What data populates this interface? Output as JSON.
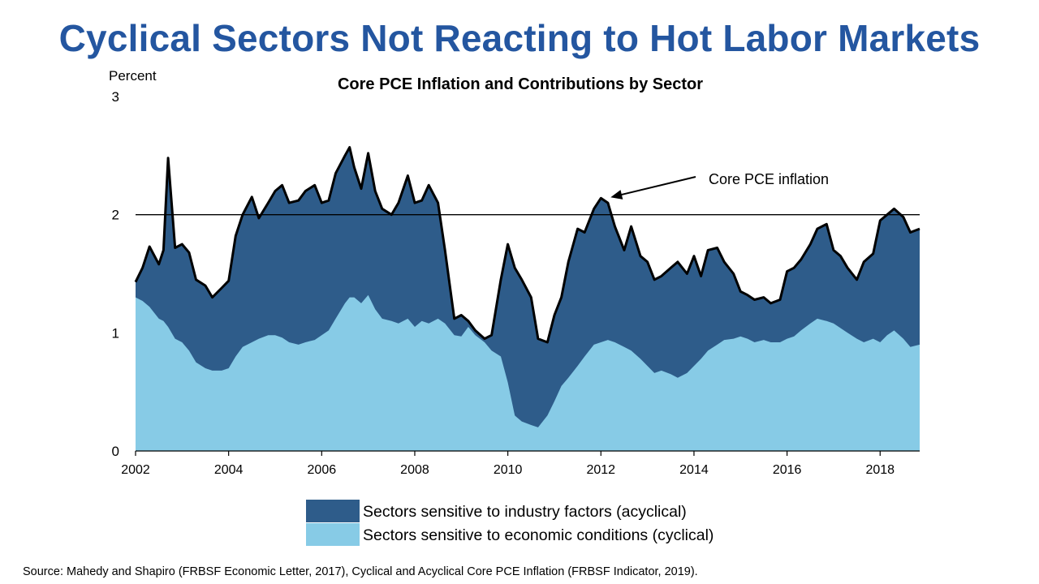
{
  "slide": {
    "title": "Cyclical Sectors Not Reacting to Hot Labor Markets",
    "source": "Source: Mahedy and Shapiro (FRBSF Economic Letter, 2017), Cyclical and Acyclical Core PCE Inflation  (FRBSF Indicator,  2019)."
  },
  "colors": {
    "title": "#2456a0",
    "acyclical": "#2e5c8a",
    "cyclical": "#87cbe6",
    "line": "#000000"
  },
  "chart_data": {
    "type": "area",
    "title": "Core PCE Inflation and Contributions by Sector",
    "ylabel": "Percent",
    "xlim": [
      2002,
      2018.85
    ],
    "ylim": [
      0,
      3
    ],
    "x_ticks": [
      2002,
      2004,
      2006,
      2008,
      2010,
      2012,
      2014,
      2016,
      2018
    ],
    "y_ticks": [
      0,
      1,
      2,
      3
    ],
    "reference_line": 2,
    "stacked": true,
    "legend_position": "bottom",
    "annotation": {
      "text": "Core PCE inflation",
      "points_to": [
        2012.0,
        2.14
      ]
    },
    "line_series_name": "Core PCE inflation",
    "series": [
      {
        "name": "Sectors sensitive to industry factors (acyclical)",
        "role": "acyclical",
        "stack_top": "core"
      },
      {
        "name": "Sectors sensitive to economic conditions (cyclical)",
        "role": "cyclical",
        "stack_top": "cyclical"
      }
    ],
    "x": [
      2002.0,
      2002.15,
      2002.3,
      2002.5,
      2002.6,
      2002.7,
      2002.85,
      2003.0,
      2003.15,
      2003.3,
      2003.5,
      2003.65,
      2003.85,
      2004.0,
      2004.15,
      2004.3,
      2004.5,
      2004.65,
      2004.85,
      2005.0,
      2005.15,
      2005.3,
      2005.5,
      2005.65,
      2005.85,
      2006.0,
      2006.15,
      2006.3,
      2006.5,
      2006.6,
      2006.7,
      2006.85,
      2007.0,
      2007.15,
      2007.3,
      2007.5,
      2007.65,
      2007.85,
      2008.0,
      2008.15,
      2008.3,
      2008.5,
      2008.65,
      2008.85,
      2009.0,
      2009.15,
      2009.3,
      2009.5,
      2009.65,
      2009.85,
      2010.0,
      2010.15,
      2010.3,
      2010.5,
      2010.65,
      2010.85,
      2011.0,
      2011.15,
      2011.3,
      2011.5,
      2011.65,
      2011.85,
      2012.0,
      2012.15,
      2012.3,
      2012.5,
      2012.65,
      2012.85,
      2013.0,
      2013.15,
      2013.3,
      2013.5,
      2013.65,
      2013.85,
      2014.0,
      2014.15,
      2014.3,
      2014.5,
      2014.65,
      2014.85,
      2015.0,
      2015.15,
      2015.3,
      2015.5,
      2015.65,
      2015.85,
      2016.0,
      2016.15,
      2016.3,
      2016.5,
      2016.65,
      2016.85,
      2017.0,
      2017.15,
      2017.3,
      2017.5,
      2017.65,
      2017.85,
      2018.0,
      2018.15,
      2018.3,
      2018.5,
      2018.65,
      2018.85
    ],
    "core": [
      1.43,
      1.55,
      1.73,
      1.58,
      1.7,
      2.48,
      1.72,
      1.75,
      1.68,
      1.45,
      1.4,
      1.3,
      1.38,
      1.44,
      1.82,
      2.0,
      2.15,
      1.97,
      2.1,
      2.2,
      2.25,
      2.1,
      2.12,
      2.2,
      2.25,
      2.1,
      2.12,
      2.35,
      2.5,
      2.57,
      2.4,
      2.22,
      2.52,
      2.2,
      2.05,
      2.0,
      2.1,
      2.33,
      2.1,
      2.12,
      2.25,
      2.1,
      1.7,
      1.12,
      1.15,
      1.1,
      1.02,
      0.95,
      0.98,
      1.45,
      1.75,
      1.55,
      1.45,
      1.3,
      0.95,
      0.92,
      1.15,
      1.3,
      1.6,
      1.88,
      1.85,
      2.05,
      2.14,
      2.1,
      1.9,
      1.7,
      1.9,
      1.65,
      1.6,
      1.45,
      1.48,
      1.55,
      1.6,
      1.5,
      1.65,
      1.48,
      1.7,
      1.72,
      1.6,
      1.5,
      1.35,
      1.32,
      1.28,
      1.3,
      1.25,
      1.28,
      1.52,
      1.55,
      1.62,
      1.75,
      1.88,
      1.92,
      1.7,
      1.65,
      1.55,
      1.45,
      1.6,
      1.67,
      1.95,
      2.0,
      2.05,
      1.98,
      1.85,
      1.88
    ],
    "cyclical": [
      1.3,
      1.27,
      1.22,
      1.12,
      1.1,
      1.05,
      0.95,
      0.92,
      0.85,
      0.75,
      0.7,
      0.68,
      0.68,
      0.7,
      0.8,
      0.88,
      0.92,
      0.95,
      0.98,
      0.98,
      0.96,
      0.92,
      0.9,
      0.92,
      0.94,
      0.98,
      1.02,
      1.12,
      1.25,
      1.3,
      1.3,
      1.25,
      1.32,
      1.2,
      1.12,
      1.1,
      1.08,
      1.12,
      1.05,
      1.1,
      1.08,
      1.12,
      1.08,
      0.98,
      0.97,
      1.05,
      0.98,
      0.92,
      0.85,
      0.8,
      0.58,
      0.3,
      0.25,
      0.22,
      0.2,
      0.3,
      0.42,
      0.55,
      0.62,
      0.72,
      0.8,
      0.9,
      0.92,
      0.94,
      0.92,
      0.88,
      0.85,
      0.78,
      0.72,
      0.66,
      0.68,
      0.65,
      0.62,
      0.66,
      0.72,
      0.78,
      0.85,
      0.9,
      0.94,
      0.95,
      0.97,
      0.95,
      0.92,
      0.94,
      0.92,
      0.92,
      0.95,
      0.97,
      1.02,
      1.08,
      1.12,
      1.1,
      1.08,
      1.04,
      1.0,
      0.95,
      0.92,
      0.95,
      0.92,
      0.98,
      1.02,
      0.95,
      0.88,
      0.9
    ]
  }
}
